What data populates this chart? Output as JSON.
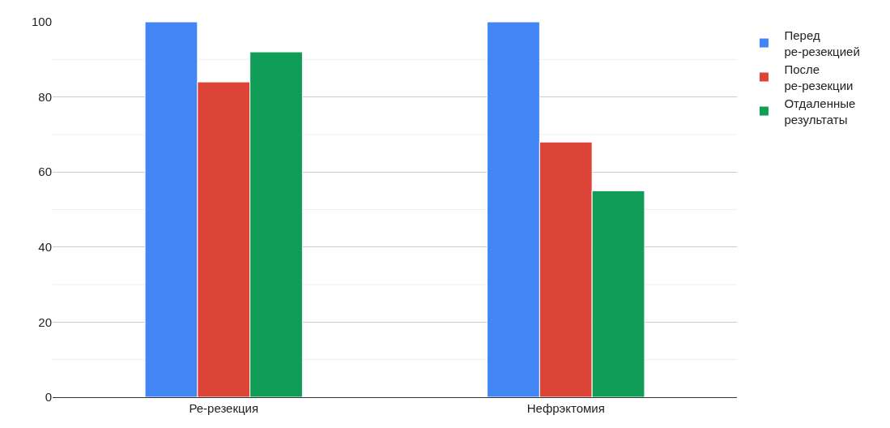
{
  "chart_data": {
    "type": "bar",
    "categories": [
      "Ре-резекция",
      "Нефрэктомия"
    ],
    "series": [
      {
        "name": "Перед ре-резекцией",
        "color": "#4285f4",
        "values": [
          100,
          100
        ]
      },
      {
        "name": "После ре-резекции",
        "color": "#db4437",
        "values": [
          84,
          68
        ]
      },
      {
        "name": "Отдаленные результаты",
        "color": "#0f9d58",
        "values": [
          92,
          55
        ]
      }
    ],
    "ylim": [
      0,
      100
    ],
    "yticks": [
      0,
      {
        "value": 10,
        "label": null
      },
      20,
      {
        "value": 30,
        "label": null
      },
      40,
      {
        "value": 50,
        "label": null
      },
      60,
      {
        "value": 70,
        "label": null
      },
      80,
      {
        "value": 90,
        "label": null
      },
      100
    ],
    "grid": "y",
    "legend": "top right"
  }
}
